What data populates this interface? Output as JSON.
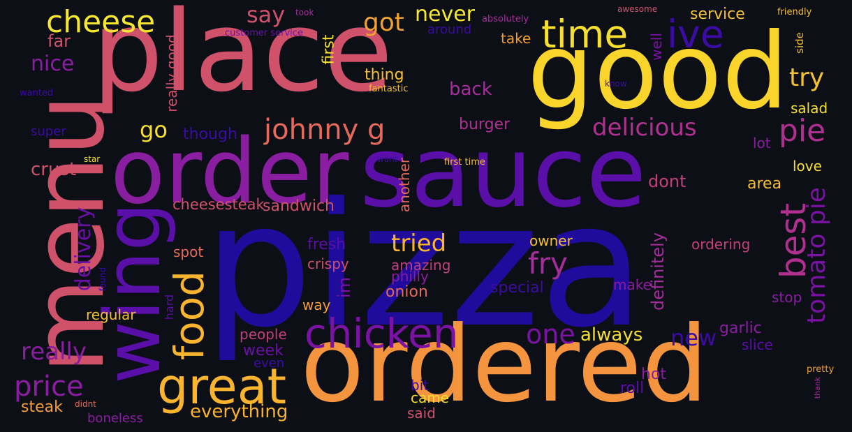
{
  "wordcloud": {
    "palette": {
      "background": "#0d0f17",
      "deep_blue": "#1f0c9c",
      "violet": "#5a0fa8",
      "purple": "#8a1ea1",
      "magenta": "#a52d9c",
      "rose": "#d04f6b",
      "coral": "#e66a5a",
      "orange": "#f5943e",
      "amber": "#fbb42d",
      "yellow": "#f6df2e"
    },
    "words": [
      {
        "text": "pizza",
        "color": "#1f0c9c"
      },
      {
        "text": "ordered",
        "color": "#f5943e"
      },
      {
        "text": "place",
        "color": "#d0526a"
      },
      {
        "text": "good",
        "color": "#f9d42a"
      },
      {
        "text": "sauce",
        "color": "#5a0fa8"
      },
      {
        "text": "order",
        "color": "#8a1ea1"
      },
      {
        "text": "menu",
        "color": "#d0526a"
      },
      {
        "text": "wing",
        "color": "#5a0fa8"
      },
      {
        "text": "great",
        "color": "#fbb42d"
      },
      {
        "text": "chicken",
        "color": "#7a12a3"
      },
      {
        "text": "time",
        "color": "#f6df2e"
      },
      {
        "text": "ive",
        "color": "#3a0ca3"
      },
      {
        "text": "food",
        "color": "#fbb42d"
      },
      {
        "text": "cheese",
        "color": "#f6e82e"
      },
      {
        "text": "johnny g",
        "color": "#e66a5a"
      },
      {
        "text": "best",
        "color": "#b0308f"
      },
      {
        "text": "tomato pie",
        "color": "#7a12a3"
      },
      {
        "text": "delicious",
        "color": "#b0308f"
      },
      {
        "text": "pie",
        "color": "#b0308f"
      },
      {
        "text": "price",
        "color": "#8a1ea1"
      },
      {
        "text": "fry",
        "color": "#a52d9c"
      },
      {
        "text": "one",
        "color": "#7a12a3"
      },
      {
        "text": "really",
        "color": "#8a1ea1"
      },
      {
        "text": "tried",
        "color": "#fbb42d"
      },
      {
        "text": "got",
        "color": "#f0a030"
      },
      {
        "text": "never",
        "color": "#f6e82e"
      },
      {
        "text": "say",
        "color": "#d0526a"
      },
      {
        "text": "delivery",
        "color": "#6a10a6"
      },
      {
        "text": "try",
        "color": "#f5c032"
      },
      {
        "text": "nice",
        "color": "#8a1ea1"
      },
      {
        "text": "go",
        "color": "#f6df2e"
      },
      {
        "text": "back",
        "color": "#a52d9c"
      },
      {
        "text": "new",
        "color": "#3a0ca3"
      },
      {
        "text": "crust",
        "color": "#d0526a"
      },
      {
        "text": "everything",
        "color": "#fbb42d"
      },
      {
        "text": "always",
        "color": "#f6df2e"
      },
      {
        "text": "definitely",
        "color": "#a52d9c"
      },
      {
        "text": "steak",
        "color": "#f5a03a"
      },
      {
        "text": "cheesesteak",
        "color": "#d0526a"
      },
      {
        "text": "sandwich",
        "color": "#d0526a"
      },
      {
        "text": "fresh",
        "color": "#5a0fa8"
      },
      {
        "text": "dont",
        "color": "#c0407c"
      },
      {
        "text": "area",
        "color": "#f5c032"
      },
      {
        "text": "service",
        "color": "#f5c032"
      },
      {
        "text": "far",
        "color": "#d0526a"
      },
      {
        "text": "first",
        "color": "#f6df2e"
      },
      {
        "text": "really good",
        "color": "#d0526a"
      },
      {
        "text": "well",
        "color": "#7a12a3"
      },
      {
        "text": "take",
        "color": "#f0a030"
      },
      {
        "text": "thing",
        "color": "#f5c032"
      },
      {
        "text": "burger",
        "color": "#b0308f"
      },
      {
        "text": "though",
        "color": "#3a0ca3"
      },
      {
        "text": "salad",
        "color": "#f6df2e"
      },
      {
        "text": "lot",
        "color": "#8a1ea1"
      },
      {
        "text": "love",
        "color": "#f6df2e"
      },
      {
        "text": "another",
        "color": "#e66a5a"
      },
      {
        "text": "ordering",
        "color": "#c0407c"
      },
      {
        "text": "owner",
        "color": "#f5c032"
      },
      {
        "text": "crispy",
        "color": "#d0526a"
      },
      {
        "text": "amazing",
        "color": "#c0407c"
      },
      {
        "text": "philly",
        "color": "#8a1ea1"
      },
      {
        "text": "onion",
        "color": "#e66a5a"
      },
      {
        "text": "im",
        "color": "#7a12a3"
      },
      {
        "text": "spot",
        "color": "#e66a5a"
      },
      {
        "text": "regular",
        "color": "#f5c032"
      },
      {
        "text": "special",
        "color": "#3a0ca3"
      },
      {
        "text": "make",
        "color": "#8a1ea1"
      },
      {
        "text": "stop",
        "color": "#8a1ea1"
      },
      {
        "text": "way",
        "color": "#f5a03a"
      },
      {
        "text": "garlic",
        "color": "#8a1ea1"
      },
      {
        "text": "slice",
        "color": "#5a0fa8"
      },
      {
        "text": "people",
        "color": "#c0407c"
      },
      {
        "text": "week",
        "color": "#6a10a6"
      },
      {
        "text": "even",
        "color": "#3a0ca3"
      },
      {
        "text": "hot",
        "color": "#8a1ea1"
      },
      {
        "text": "roll",
        "color": "#5a0fa8"
      },
      {
        "text": "bit",
        "color": "#3a0ca3"
      },
      {
        "text": "came",
        "color": "#f6df2e"
      },
      {
        "text": "said",
        "color": "#d0526a"
      },
      {
        "text": "boneless",
        "color": "#8a1ea1"
      },
      {
        "text": "hard",
        "color": "#5a0fa8"
      },
      {
        "text": "super",
        "color": "#3a0ca3"
      },
      {
        "text": "around",
        "color": "#3a0ca3"
      },
      {
        "text": "customer service",
        "color": "#6a10a6"
      },
      {
        "text": "took",
        "color": "#a52d9c"
      },
      {
        "text": "absolutely",
        "color": "#a52d9c"
      },
      {
        "text": "awesome",
        "color": "#d0526a"
      },
      {
        "text": "friendly",
        "color": "#f5c032"
      },
      {
        "text": "side",
        "color": "#f5c032"
      },
      {
        "text": "know",
        "color": "#3a0ca3"
      },
      {
        "text": "wanted",
        "color": "#3a0ca3"
      },
      {
        "text": "fantastic",
        "color": "#f5c032"
      },
      {
        "text": "star",
        "color": "#f6df2e"
      },
      {
        "text": "want",
        "color": "#3a0ca3"
      },
      {
        "text": "first time",
        "color": "#f5c032"
      },
      {
        "text": "found",
        "color": "#3a0ca3"
      },
      {
        "text": "didnt",
        "color": "#e66a5a"
      },
      {
        "text": "pretty",
        "color": "#f0a030"
      },
      {
        "text": "thank",
        "color": "#a52d9c"
      }
    ]
  }
}
